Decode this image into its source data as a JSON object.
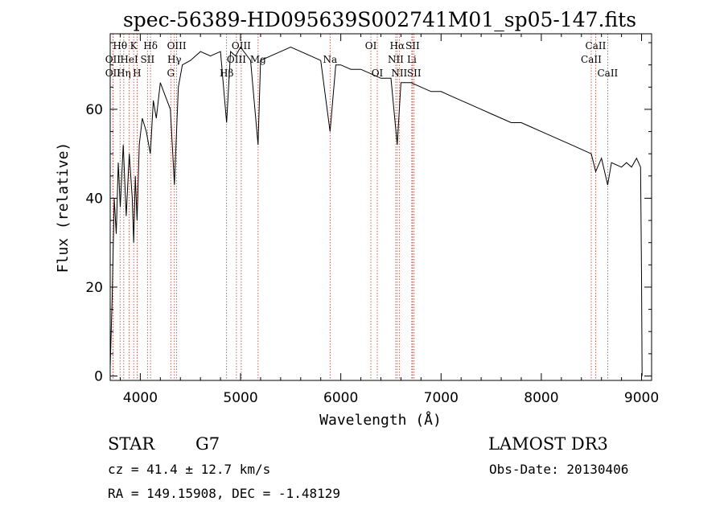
{
  "chart_data": {
    "type": "line",
    "title": "spec-56389-HD095639S002741M01_sp05-147.fits",
    "xlabel": "Wavelength (Å)",
    "ylabel": "Flux (relative)",
    "xlim": [
      3700,
      9100
    ],
    "ylim": [
      -1,
      77
    ],
    "x_ticks": [
      4000,
      5000,
      6000,
      7000,
      8000,
      9000
    ],
    "y_ticks": [
      0,
      20,
      40,
      60
    ],
    "series": [
      {
        "name": "spectrum",
        "x": [
          3700,
          3720,
          3740,
          3760,
          3780,
          3800,
          3830,
          3860,
          3890,
          3920,
          3934,
          3950,
          3968,
          3990,
          4020,
          4060,
          4100,
          4130,
          4160,
          4200,
          4250,
          4300,
          4340,
          4380,
          4420,
          4500,
          4600,
          4700,
          4800,
          4861,
          4900,
          4950,
          5000,
          5100,
          5175,
          5200,
          5300,
          5400,
          5500,
          5600,
          5700,
          5800,
          5893,
          5950,
          6000,
          6100,
          6200,
          6300,
          6400,
          6500,
          6563,
          6600,
          6700,
          6800,
          6900,
          7000,
          7100,
          7200,
          7300,
          7400,
          7500,
          7600,
          7700,
          7800,
          7900,
          8000,
          8100,
          8200,
          8300,
          8400,
          8498,
          8542,
          8600,
          8662,
          8700,
          8800,
          8850,
          8900,
          8950,
          8990,
          9000,
          9005
        ],
        "y": [
          2,
          18,
          40,
          32,
          48,
          38,
          52,
          36,
          50,
          40,
          30,
          45,
          35,
          52,
          58,
          55,
          50,
          62,
          58,
          66,
          63,
          60,
          43,
          65,
          70,
          71,
          73,
          72,
          73,
          57,
          73,
          72,
          74,
          71,
          52,
          71,
          72,
          73,
          74,
          73,
          72,
          71,
          55,
          70,
          70,
          69,
          69,
          68,
          67,
          67,
          52,
          66,
          66,
          65,
          64,
          64,
          63,
          62,
          61,
          60,
          59,
          58,
          57,
          57,
          56,
          55,
          54,
          53,
          52,
          51,
          50,
          46,
          49,
          43,
          48,
          47,
          48,
          47,
          49,
          47,
          22,
          0
        ]
      }
    ],
    "spectral_lines": [
      {
        "label": "OII",
        "x": 3727,
        "row": 2
      },
      {
        "label": "OII",
        "x": 3727,
        "row": 3
      },
      {
        "label": "Hθ",
        "x": 3798,
        "row": 1
      },
      {
        "label": "Hη",
        "x": 3835,
        "row": 3
      },
      {
        "label": "HeI",
        "x": 3889,
        "row": 2
      },
      {
        "label": "K",
        "x": 3934,
        "row": 1
      },
      {
        "label": "H",
        "x": 3968,
        "row": 3
      },
      {
        "label": "SII",
        "x": 4072,
        "row": 2
      },
      {
        "label": "Hδ",
        "x": 4102,
        "row": 1
      },
      {
        "label": "G",
        "x": 4304,
        "row": 3
      },
      {
        "label": "Hγ",
        "x": 4340,
        "row": 2
      },
      {
        "label": "OIII",
        "x": 4363,
        "row": 1
      },
      {
        "label": "Hβ",
        "x": 4861,
        "row": 3
      },
      {
        "label": "OIII",
        "x": 4959,
        "row": 2
      },
      {
        "label": "OIII",
        "x": 5007,
        "row": 1
      },
      {
        "label": "Mg",
        "x": 5175,
        "row": 2
      },
      {
        "label": "Na",
        "x": 5893,
        "row": 2
      },
      {
        "label": "OI",
        "x": 6300,
        "row": 1
      },
      {
        "label": "OI",
        "x": 6364,
        "row": 3
      },
      {
        "label": "NII",
        "x": 6548,
        "row": 2
      },
      {
        "label": "Hα",
        "x": 6563,
        "row": 1
      },
      {
        "label": "NII",
        "x": 6583,
        "row": 3
      },
      {
        "label": "SII",
        "x": 6716,
        "row": 1
      },
      {
        "label": "Li",
        "x": 6708,
        "row": 2
      },
      {
        "label": "SII",
        "x": 6731,
        "row": 3
      },
      {
        "label": "CaII",
        "x": 8498,
        "row": 2
      },
      {
        "label": "CaII",
        "x": 8542,
        "row": 1
      },
      {
        "label": "CaII",
        "x": 8662,
        "row": 3
      }
    ]
  },
  "info": {
    "class_label": "STAR",
    "subclass": "G7",
    "survey": "LAMOST DR3",
    "cz": "cz = 41.4 ± 12.7 km/s",
    "obs_date": "Obs-Date: 20130406",
    "coords": "RA = 149.15908, DEC =  -1.48129"
  }
}
